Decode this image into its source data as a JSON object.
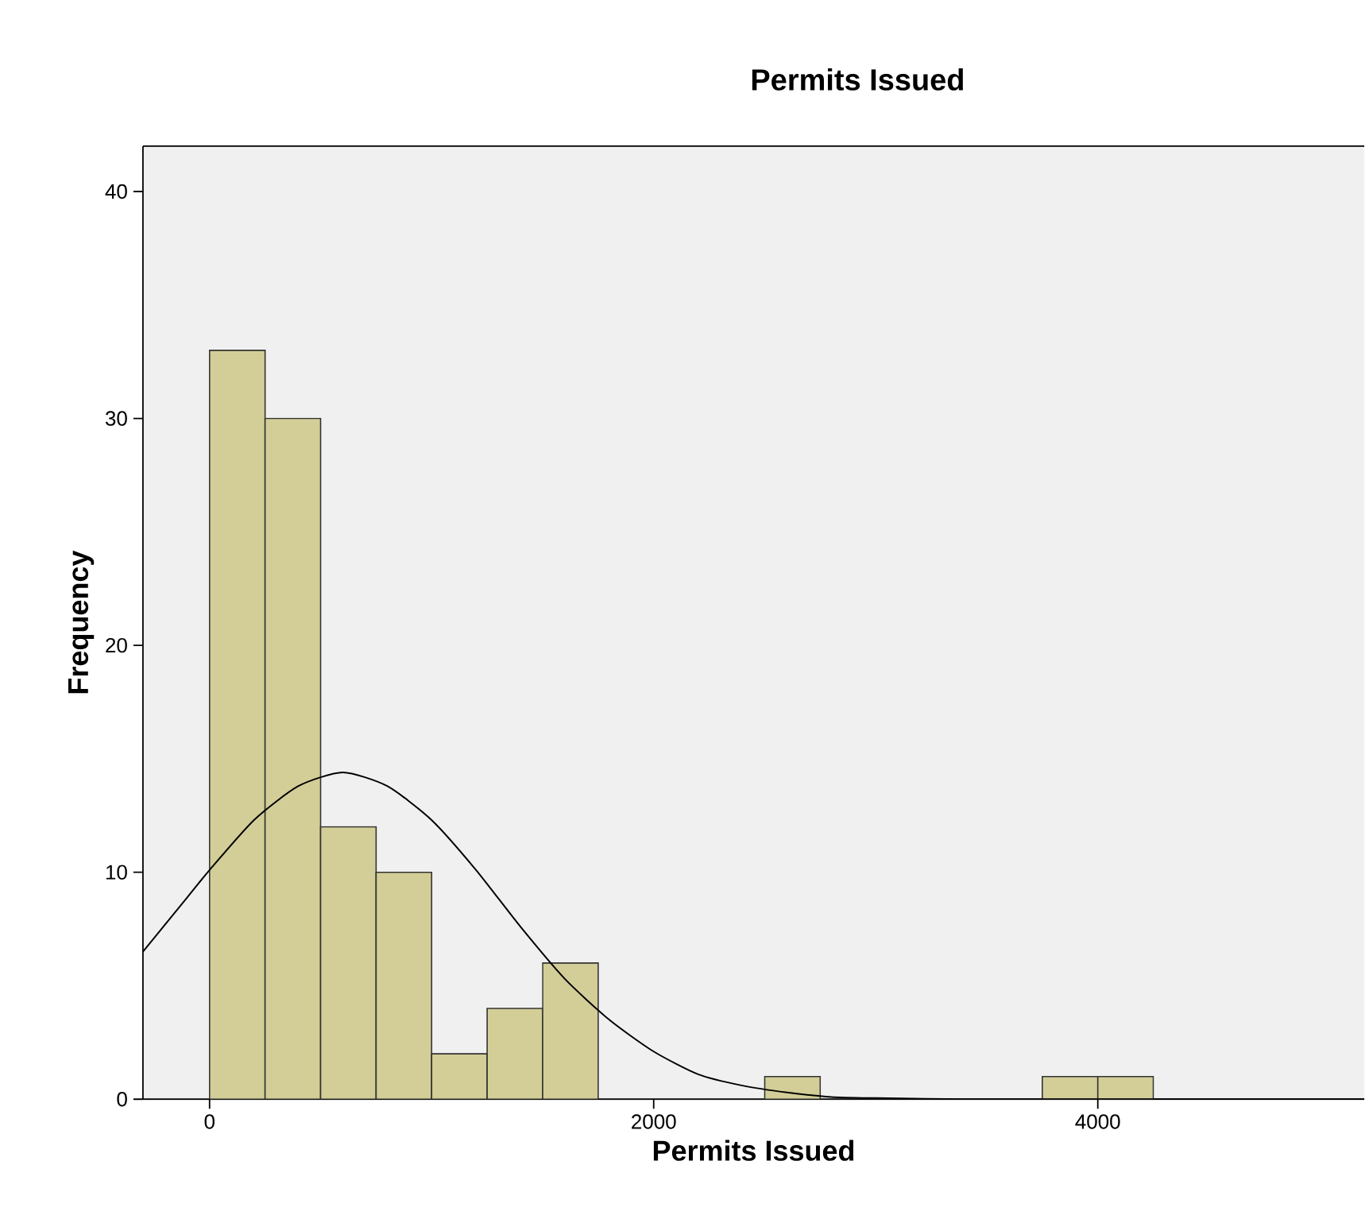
{
  "chart_data": {
    "type": "histogram",
    "title": "Permits Issued",
    "xlabel": "Permits Issued",
    "ylabel": "Frequency",
    "bins": [
      0,
      250,
      500,
      750,
      1000,
      1250,
      1500,
      1750,
      2000,
      2250,
      2500,
      2750,
      3000,
      3250,
      3500,
      3750,
      4000,
      4250
    ],
    "values": [
      33,
      30,
      12,
      10,
      2,
      4,
      6,
      0,
      0,
      0,
      1,
      0,
      0,
      0,
      0,
      1,
      1
    ],
    "color": "#d3ce97",
    "series": [
      {
        "type": "line",
        "color": "#000000",
        "x": [
          -300,
          -100,
          0,
          200,
          400,
          600,
          800,
          1000,
          1200,
          1400,
          1600,
          1800,
          2000,
          2200,
          2400,
          2600,
          2800,
          3000,
          3400,
          4000,
          5200
        ],
        "values": [
          6.5,
          8.9,
          10.1,
          12.3,
          13.8,
          14.4,
          13.8,
          12.3,
          10.1,
          7.6,
          5.3,
          3.5,
          2.1,
          1.1,
          0.6,
          0.3,
          0.1,
          0.05,
          0,
          0,
          0
        ]
      }
    ],
    "xlim": [
      -300,
      5200
    ],
    "ylim": [
      0,
      42
    ],
    "xticks": [
      0,
      2000,
      4000
    ],
    "yticks": [
      0,
      10,
      20,
      30,
      40
    ],
    "grid": false
  }
}
